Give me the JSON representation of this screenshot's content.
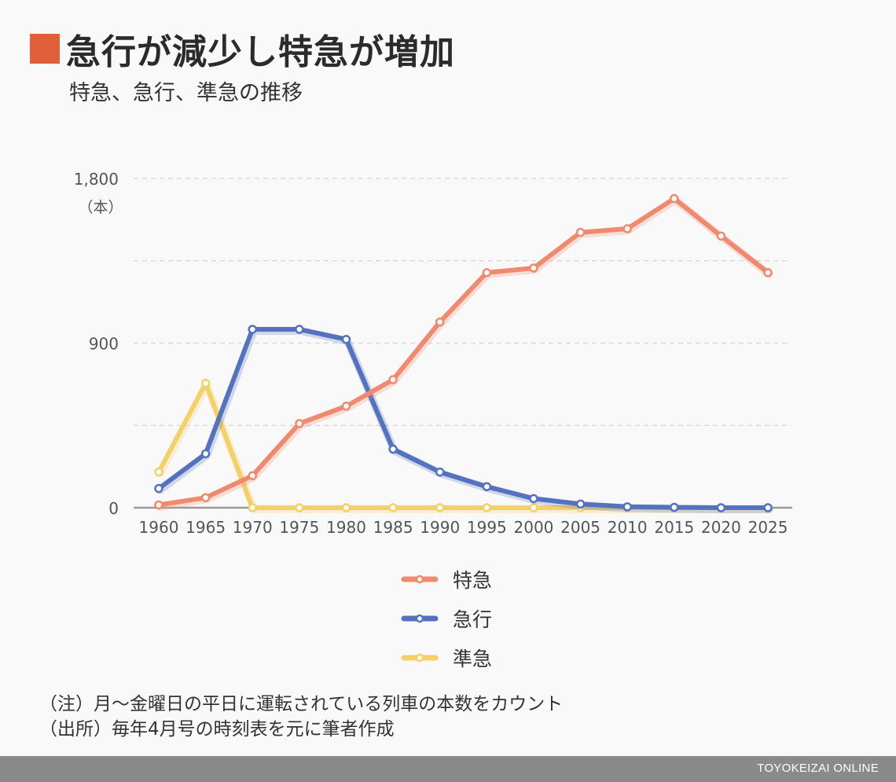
{
  "header": {
    "title": "急行が減少し特急が増加",
    "subtitle": "特急、急行、準急の推移",
    "accent_color": "#e0603c"
  },
  "chart_data": {
    "type": "line",
    "title": "急行が減少し特急が増加",
    "subtitle": "特急、急行、準急の推移",
    "unit_label": "（本）",
    "x": [
      1960,
      1965,
      1970,
      1975,
      1980,
      1985,
      1990,
      1995,
      2000,
      2005,
      2010,
      2015,
      2020,
      2025
    ],
    "x_tick_labels": [
      "1960",
      "1965",
      "1970",
      "1975",
      "1980",
      "1985",
      "1990",
      "1995",
      "2000",
      "2005",
      "2010",
      "2015",
      "2020",
      "2025"
    ],
    "y_ticks": [
      0,
      900,
      1800
    ],
    "y_tick_labels": [
      "0",
      "900",
      "1,800"
    ],
    "ylim": [
      0,
      1800
    ],
    "grid": true,
    "legend_position": "bottom",
    "series": [
      {
        "name": "特急",
        "color": "#ef8a6f",
        "values": [
          15,
          55,
          175,
          460,
          555,
          700,
          1015,
          1285,
          1310,
          1505,
          1525,
          1690,
          1485,
          1285
        ]
      },
      {
        "name": "急行",
        "color": "#5472bd",
        "values": [
          105,
          295,
          975,
          975,
          920,
          320,
          195,
          115,
          50,
          20,
          5,
          2,
          0,
          0
        ]
      },
      {
        "name": "準急",
        "color": "#f3d166",
        "values": [
          195,
          680,
          0,
          0,
          0,
          0,
          0,
          0,
          0,
          0,
          0,
          0,
          0,
          0
        ]
      }
    ]
  },
  "notes": {
    "line1": "（注）月～金曜日の平日に運転されている列車の本数をカウント",
    "line2": "（出所）毎年4月号の時刻表を元に筆者作成"
  },
  "footer": {
    "brand": "TOYOKEIZAI ONLINE"
  }
}
